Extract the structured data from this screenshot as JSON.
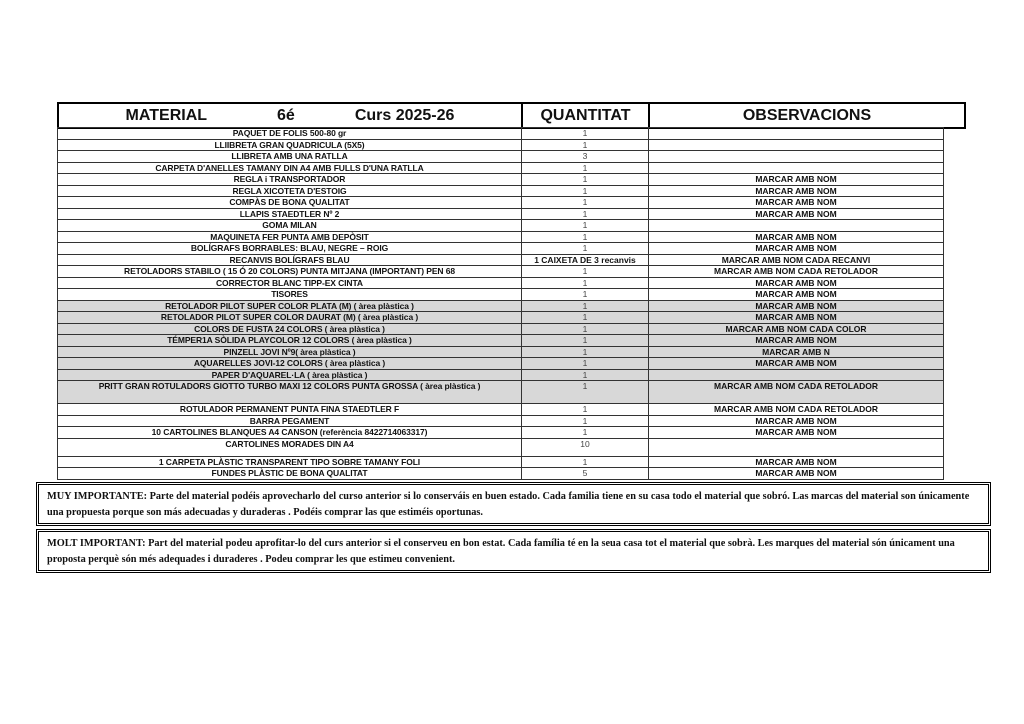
{
  "header": {
    "material": "MATERIAL",
    "grade": "6é",
    "course": "Curs 2025-26",
    "quantity": "QUANTITAT",
    "observations": "OBSERVACIONS"
  },
  "rows": [
    {
      "material": "PAQUET DE FOLIS 500-80 gr",
      "qty": "1",
      "obs": ""
    },
    {
      "material": "LLIIBRETA GRAN QUADRICULA (5X5)",
      "qty": "1",
      "obs": ""
    },
    {
      "material": "LLIBRETA AMB UNA RATLLA",
      "qty": "3",
      "obs": ""
    },
    {
      "material": "CARPETA D'ANELLES TAMANY DIN A4 AMB FULLS D'UNA RATLLA",
      "qty": "1",
      "obs": ""
    },
    {
      "material": "REGLA i TRANSPORTADOR",
      "qty": "1",
      "obs": "MARCAR AMB NOM"
    },
    {
      "material": "REGLA XICOTETA D'ESTOIG",
      "qty": "1",
      "obs": "MARCAR AMB NOM"
    },
    {
      "material": "COMPÀS DE BONA QUALITAT",
      "qty": "1",
      "obs": "MARCAR AMB NOM"
    },
    {
      "material": "LLAPIS STAEDTLER Nº 2",
      "qty": "1",
      "obs": "MARCAR AMB NOM"
    },
    {
      "material": "GOMA MILAN",
      "qty": "1",
      "obs": ""
    },
    {
      "material": "MAQUINETA FER PUNTA AMB DEPÒSIT",
      "qty": "1",
      "obs": "MARCAR AMB NOM"
    },
    {
      "material": "BOLÍGRAFS BORRABLES: BLAU, NEGRE – ROIG",
      "qty": "1",
      "obs": "MARCAR AMB NOM"
    },
    {
      "material": "RECANVIS BOLÍGRAFS BLAU",
      "qty": "1 CAIXETA DE 3 recanvis",
      "obs": "MARCAR AMB  NOM CADA RECANVI"
    },
    {
      "material": "RETOLADORS STABILO ( 15 Ó  20 COLORS) PUNTA MITJANA (IMPORTANT) PEN 68",
      "qty": "1",
      "obs": "MARCAR AMB NOM CADA RETOLADOR"
    },
    {
      "material": "CORRECTOR BLANC TIPP-EX CINTA",
      "qty": "1",
      "obs": "MARCAR AMB NOM"
    },
    {
      "material": "TISORES",
      "qty": "1",
      "obs": "MARCAR AMB NOM"
    },
    {
      "material": "RETOLADOR PILOT SUPER COLOR PLATA (M) ( àrea   plàstica )",
      "qty": "1",
      "obs": "MARCAR AMB NOM"
    },
    {
      "material": "RETOLADOR PILOT SUPER COLOR DAURAT (M) ( àrea   plàstica )",
      "qty": "1",
      "obs": "MARCAR AMB NOM"
    },
    {
      "material": "COLORS DE FUSTA  24 COLORS    ( àrea   plàstica )",
      "qty": "1",
      "obs": "MARCAR AMB NOM CADA COLOR"
    },
    {
      "material": "TÉMPER1A SÒLIDA PLAYCOLOR 12 COLORS   ( àrea   plàstica )",
      "qty": "1",
      "obs": "MARCAR AMB NOM"
    },
    {
      "material": "PINZELL JOVI Nº9( àrea   plàstica )",
      "qty": "1",
      "obs": "MARCAR AMB N"
    },
    {
      "material": "AQUARELLES   JOVI-12 COLORS ( àrea   plàstica )",
      "qty": "1",
      "obs": "MARCAR AMB NOM"
    },
    {
      "material": "PAPER D'AQUAREL·LA  ( àrea   plàstica )",
      "qty": "1",
      "obs": ""
    },
    {
      "material": "PRITT GRAN ROTULADORS  GIOTTO  TURBO MAXI  12  COLORS PUNTA  GROSSA  ( àrea plàstica )",
      "qty": "1",
      "obs": "MARCAR AMB NOM CADA RETOLADOR"
    },
    {
      "material": "ROTULADOR PERMANENT PUNTA FINA STAEDTLER   F",
      "qty": "1",
      "obs": "MARCAR AMB NOM  CADA RETOLADOR"
    },
    {
      "material": "BARRA PEGAMENT",
      "qty": "1",
      "obs": "MARCAR AMB NOM"
    },
    {
      "material": "10 CARTOLINES BLANQUES A4 CANSON (referència 8422714063317)",
      "qty": "1",
      "obs": "MARCAR AMB NOM"
    },
    {
      "material": "CARTOLINES MORADES DIN A4",
      "qty": "10",
      "obs": ""
    },
    {
      "material": "1 CARPETA PLÀSTIC TRANSPARENT TIPO SOBRE TAMANY FOLI",
      "qty": "1",
      "obs": "MARCAR AMB NOM"
    },
    {
      "material": "FUNDES PLÀSTIC DE BONA QUALITAT",
      "qty": "5",
      "obs": "MARCAR AMB NOM"
    }
  ],
  "notes": {
    "es": "MUY  IMPORTANTE: Parte del material podéis aprovecharlo del curso anterior si lo conserváis en buen estado. Cada familia tiene  en su casa todo el material que sobró. Las marcas del material son únicamente una propuesta porque son más adecuadas y duraderas . Podéis comprar las que estiméis oportunas.",
    "ca": "MOLT  IMPORTANT: Part del material podeu aprofitar-lo del curs anterior si el conserveu en bon estat. Cada família té en  la seua casa tot el material que sobrà. Les marques del material són únicament una proposta perquè són més adequades i duraderes . Podeu comprar les que estimeu convenient."
  },
  "colors": {
    "highlight_row": "#d8d8d8",
    "border": "#000000"
  }
}
